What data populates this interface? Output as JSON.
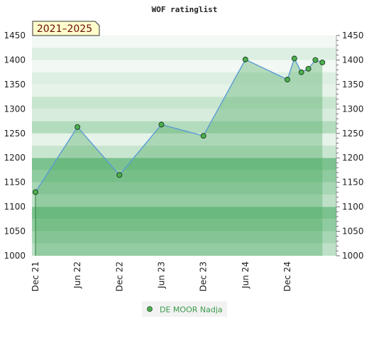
{
  "chart_data": {
    "type": "area",
    "title": "WOF ratinglist",
    "period_label": "2021–2025",
    "xlabel": "",
    "ylabel": "",
    "ylim": [
      1000,
      1450
    ],
    "yticks": [
      1000,
      1050,
      1100,
      1150,
      1200,
      1250,
      1300,
      1350,
      1400,
      1450
    ],
    "xlim": [
      "2021-12",
      "2025-07"
    ],
    "xticks": [
      {
        "label": "Dec 21",
        "date": "2021-12"
      },
      {
        "label": "Jun 22",
        "date": "2022-06"
      },
      {
        "label": "Dec 22",
        "date": "2022-12"
      },
      {
        "label": "Jun 23",
        "date": "2023-06"
      },
      {
        "label": "Dec 23",
        "date": "2023-12"
      },
      {
        "label": "Jun 24",
        "date": "2024-06"
      },
      {
        "label": "Dec 24",
        "date": "2024-12"
      }
    ],
    "grid": true,
    "legend_position": "bottom-center",
    "colors": {
      "line": "#5b9bd5",
      "marker": "#4caf50",
      "legend_text": "#3a9a4a",
      "badge_bg": "#ffffcc"
    },
    "series": [
      {
        "name": "DE MOOR Nadja",
        "points": [
          {
            "date": "2021-12",
            "value": 1130
          },
          {
            "date": "2022-06",
            "value": 1263
          },
          {
            "date": "2022-12",
            "value": 1165
          },
          {
            "date": "2023-06",
            "value": 1268
          },
          {
            "date": "2023-12",
            "value": 1245
          },
          {
            "date": "2024-06",
            "value": 1401
          },
          {
            "date": "2024-12",
            "value": 1360
          },
          {
            "date": "2025-01",
            "value": 1403
          },
          {
            "date": "2025-02",
            "value": 1375
          },
          {
            "date": "2025-03",
            "value": 1382
          },
          {
            "date": "2025-04",
            "value": 1400
          },
          {
            "date": "2025-05",
            "value": 1395
          }
        ]
      }
    ]
  }
}
